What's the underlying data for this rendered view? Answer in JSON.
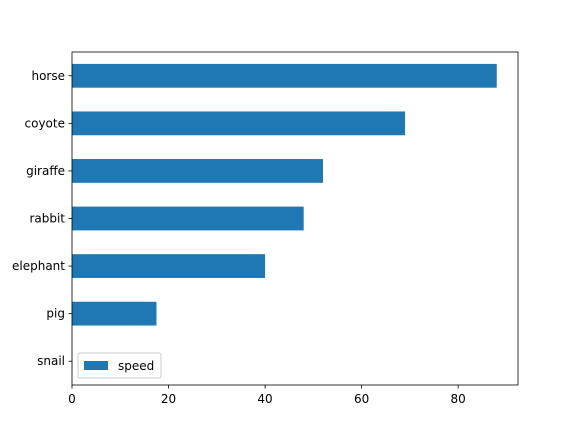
{
  "chart_data": {
    "type": "bar",
    "orientation": "horizontal",
    "categories": [
      "snail",
      "pig",
      "elephant",
      "rabbit",
      "giraffe",
      "coyote",
      "horse"
    ],
    "series": [
      {
        "name": "speed",
        "values": [
          0.03,
          17.5,
          40,
          48,
          52,
          69,
          88
        ],
        "color": "#1f77b4"
      }
    ],
    "xlim": [
      0,
      92.4
    ],
    "xticks": [
      0,
      20,
      40,
      60,
      80
    ],
    "xlabel": "",
    "ylabel": "",
    "title": "",
    "grid": false,
    "legend_position": "lower-left"
  }
}
